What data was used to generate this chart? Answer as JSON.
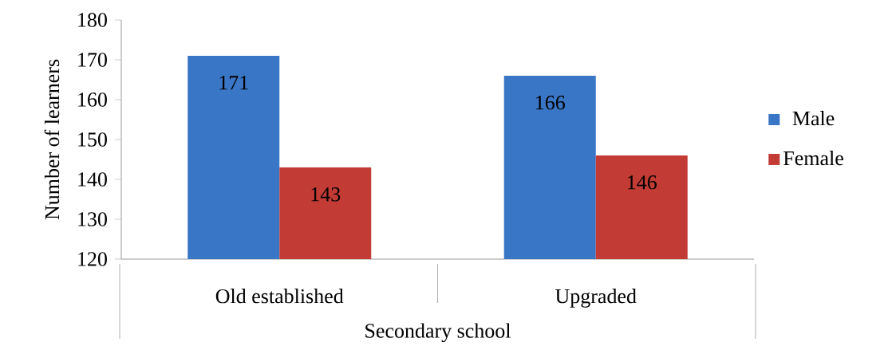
{
  "chart_data": {
    "type": "bar",
    "xlabel": "Secondary school",
    "ylabel": "Number of learners",
    "categories": [
      "Old established",
      "Upgraded"
    ],
    "series": [
      {
        "name": "Male",
        "color": "#3a76c6",
        "values": [
          171,
          166
        ]
      },
      {
        "name": "Female",
        "color": "#c23b35",
        "values": [
          143,
          146
        ]
      }
    ],
    "ylim": [
      120,
      180
    ],
    "yticks": [
      120,
      130,
      140,
      150,
      160,
      170,
      180
    ],
    "data_labels": true,
    "legend": "right",
    "grid": false
  }
}
